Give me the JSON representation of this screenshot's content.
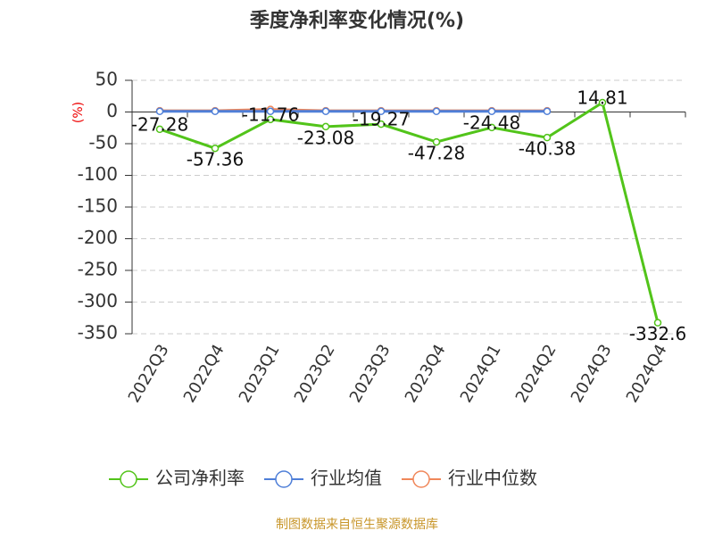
{
  "chart_data": {
    "type": "line",
    "title": "季度净利率变化情况(%)",
    "y_label": "(%)",
    "categories": [
      "2022Q3",
      "2022Q4",
      "2023Q1",
      "2023Q2",
      "2023Q3",
      "2023Q4",
      "2024Q1",
      "2024Q2",
      "2024Q3",
      "2024Q4"
    ],
    "series": [
      {
        "name": "公司净利率",
        "color": "#52c41a",
        "data_labels": true,
        "values": [
          -27.28,
          -57.36,
          -11.76,
          -23.08,
          -19.27,
          -47.28,
          -24.48,
          -40.38,
          14.81,
          -332.6
        ]
      },
      {
        "name": "行业均值",
        "color": "#4f7fd8",
        "values": [
          1,
          1,
          1,
          1,
          1,
          1,
          1,
          1,
          null,
          null
        ]
      },
      {
        "name": "行业中位数",
        "color": "#f0875a",
        "values": [
          2,
          2,
          4,
          2,
          2,
          2,
          2,
          2,
          null,
          null
        ]
      }
    ],
    "ylim": [
      -350,
      50
    ],
    "yticks": [
      50,
      0,
      -50,
      -100,
      -150,
      -200,
      -250,
      -300,
      -350
    ],
    "grid": true,
    "source": "制图数据来自恒生聚源数据库"
  }
}
